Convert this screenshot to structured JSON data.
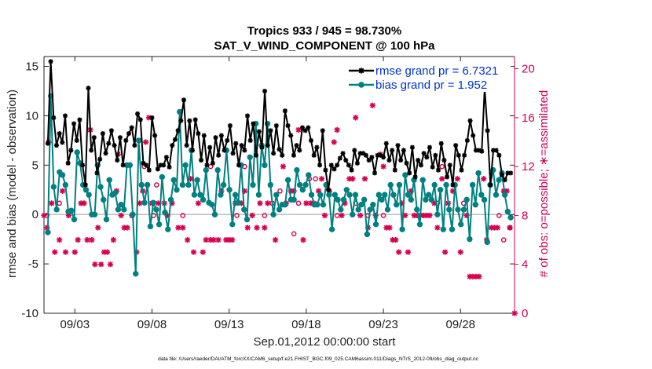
{
  "chart_data": {
    "type": "line",
    "title": "Tropics 933 / 945 = 98.730%",
    "subtitle": "SAT_V_WIND_COMPONENT @ 100 hPa",
    "xlabel": "Sep.01,2012 00:00:00 start",
    "ylabel": "rmse and bias (model - observation)",
    "ylabel_right": "# of obs: o=possible; ∗=assimilated",
    "xlim": [
      1,
      31.5
    ],
    "ylim": [
      -10,
      16
    ],
    "ylim_right": [
      0,
      21
    ],
    "x_tick_values": [
      3,
      8,
      13,
      18,
      23,
      28
    ],
    "x_tick_labels": [
      "09/03",
      "09/08",
      "09/13",
      "09/18",
      "09/23",
      "09/28"
    ],
    "y_ticks": [
      -10,
      -5,
      0,
      5,
      10,
      15
    ],
    "y_ticks_right": [
      0,
      4,
      8,
      12,
      16,
      20
    ],
    "footnote": "data file: /Users/raeder/DAI/ATM_forcXX/CAM6_setup/f.e21.FHIST_BGC.f09_025.CAM6assim.011/Diags_NTrS_2012-09/obs_diag_output.nc",
    "legend": [
      {
        "label": "rmse grand pr = 6.7321",
        "color": "#000000",
        "marker": "star"
      },
      {
        "label": "bias grand pr = 1.952",
        "color": "#008080",
        "marker": "dot"
      }
    ],
    "series": [
      {
        "name": "rmse",
        "color": "#000000",
        "values": [
          7.2,
          15.5,
          9.8,
          7.0,
          8.2,
          7.3,
          10.0,
          5.2,
          6.5,
          9.2,
          7.5,
          9.6,
          5.0,
          3.0,
          12.8,
          6.5,
          7.8,
          4.2,
          5.6,
          8.2,
          6.2,
          7.2,
          8.5,
          7.0,
          5.5,
          7.8,
          5.0,
          7.5,
          8.2,
          8.8,
          7.0,
          10.2,
          9.6,
          5.2,
          5.0,
          4.5,
          9.8,
          8.0,
          4.6,
          5.0,
          5.0,
          5.8,
          4.8,
          7.0,
          7.6,
          8.5,
          9.5,
          11.6,
          7.0,
          9.5,
          6.5,
          9.6,
          8.2,
          5.5,
          8.0,
          5.0,
          6.8,
          5.2,
          7.8,
          6.0,
          8.0,
          6.5,
          7.5,
          9.0,
          6.2,
          7.2,
          5.0,
          7.0,
          6.5,
          10.0,
          7.5,
          9.2,
          6.0,
          8.4,
          6.8,
          12.5,
          7.0,
          8.5,
          6.2,
          9.0,
          6.6,
          6.0,
          10.5,
          9.0,
          8.0,
          6.0,
          7.0,
          6.5,
          8.8,
          8.5,
          8.8,
          7.5,
          6.0,
          6.8,
          5.0,
          8.5,
          4.5,
          2.5,
          5.0,
          4.6,
          5.0,
          5.7,
          6.2,
          5.5,
          5.0,
          4.5,
          6.5,
          5.2,
          6.2,
          6.2,
          6.0,
          5.5,
          5.8,
          4.2,
          6.0,
          6.0,
          5.8,
          7.2,
          5.5,
          6.5,
          4.5,
          7.0,
          5.5,
          6.5,
          5.2,
          4.2,
          6.8,
          3.8,
          5.5,
          5.0,
          6.2,
          5.8,
          6.8,
          4.8,
          6.0,
          4.5,
          7.2,
          5.5,
          3.8,
          5.0,
          3.0,
          7.0,
          6.0,
          4.5,
          6.0,
          7.5,
          9.5,
          8.0,
          6.5,
          6.5,
          6.4,
          12.8,
          8.5,
          3.0,
          6.5,
          6.5,
          6.0,
          4.0,
          3.5,
          4.2,
          4.2
        ]
      },
      {
        "name": "bias",
        "color": "#008080",
        "values": [
          -1.8,
          12.0,
          2.8,
          0.5,
          4.3,
          4.0,
          3.0,
          0.3,
          0.4,
          -0.5,
          6.3,
          5.2,
          3.0,
          2.5,
          2.0,
          0.0,
          0.0,
          5.0,
          2.8,
          1.5,
          -0.5,
          3.5,
          2.0,
          2.2,
          0.5,
          1.0,
          0.5,
          5.0,
          5.0,
          0.0,
          -6.0,
          7.5,
          3.0,
          1.2,
          3.0,
          -1.2,
          1.2,
          0.5,
          -1.0,
          3.8,
          0.2,
          -1.5,
          1.5,
          3.5,
          2.5,
          10.4,
          3.0,
          5.0,
          3.0,
          6.5,
          2.0,
          3.5,
          2.0,
          1.5,
          4.5,
          1.2,
          1.0,
          0.0,
          4.5,
          2.0,
          3.0,
          6.5,
          2.5,
          -1.0,
          2.0,
          1.2,
          5.0,
          0.5,
          -0.5,
          5.8,
          3.0,
          9.2,
          2.0,
          7.0,
          5.0,
          9.2,
          3.0,
          0.0,
          2.0,
          0.5,
          1.0,
          1.0,
          3.5,
          1.5,
          1.5,
          4.5,
          3.0,
          2.5,
          3.0,
          4.0,
          2.0,
          1.0,
          1.0,
          2.0,
          1.0,
          3.0,
          2.0,
          -1.5,
          2.0,
          1.5,
          0.5,
          1.5,
          2.5,
          2.0,
          0.0,
          2.0,
          0.5,
          1.0,
          1.5,
          -2.0,
          0.5,
          1.0,
          -1.0,
          2.0,
          1.5,
          2.0,
          0.5,
          3.0,
          2.0,
          1.0,
          3.0,
          -1.5,
          4.0,
          2.0,
          1.5,
          3.5,
          0.5,
          -1.0,
          3.5,
          1.5,
          2.0,
          1.5,
          3.0,
          0.0,
          2.5,
          -1.5,
          3.0,
          0.5,
          -1.5,
          3.0,
          0.5,
          -1.0,
          0.5,
          1.5,
          -2.5,
          3.0,
          1.0,
          4.2,
          2.0,
          1.5,
          -2.8,
          3.0,
          4.5,
          2.0,
          3.5,
          4.2,
          2.0,
          0.3,
          -0.3
        ]
      },
      {
        "name": "obs_possible",
        "marker": "o",
        "color": "#d6004f",
        "axis": "right",
        "points": [
          [
            1.2,
            8
          ],
          [
            2.0,
            9
          ],
          [
            7.5,
            12
          ],
          [
            8.1,
            8
          ],
          [
            8.3,
            10.5
          ],
          [
            10.0,
            8
          ],
          [
            11.8,
            12
          ],
          [
            13.5,
            8
          ],
          [
            14.0,
            12
          ],
          [
            15.3,
            8
          ],
          [
            15.8,
            9
          ],
          [
            16.3,
            10
          ],
          [
            17.2,
            6.5
          ],
          [
            17.5,
            9
          ],
          [
            18.2,
            11
          ],
          [
            18.6,
            11
          ],
          [
            20.0,
            8
          ],
          [
            21.2,
            9
          ],
          [
            22.0,
            8
          ],
          [
            23.0,
            8
          ],
          [
            26.5,
            9
          ],
          [
            26.8,
            12
          ],
          [
            28.2,
            9
          ],
          [
            30.5,
            8
          ],
          [
            30.8,
            6
          ],
          [
            31.2,
            7
          ]
        ]
      },
      {
        "name": "obs_assimilated",
        "marker": "*",
        "color": "#d6004f",
        "axis": "right",
        "points": [
          [
            1.0,
            8
          ],
          [
            1.2,
            7
          ],
          [
            1.3,
            14
          ],
          [
            1.5,
            9
          ],
          [
            1.7,
            5
          ],
          [
            2.0,
            6
          ],
          [
            2.2,
            10
          ],
          [
            2.4,
            5
          ],
          [
            2.6,
            8
          ],
          [
            3.0,
            5
          ],
          [
            3.2,
            6
          ],
          [
            3.4,
            9
          ],
          [
            3.6,
            9
          ],
          [
            3.8,
            6
          ],
          [
            4.0,
            15
          ],
          [
            4.1,
            6
          ],
          [
            4.3,
            4
          ],
          [
            4.5,
            7
          ],
          [
            4.7,
            4
          ],
          [
            4.9,
            5
          ],
          [
            5.1,
            5
          ],
          [
            5.3,
            4
          ],
          [
            5.5,
            6
          ],
          [
            5.7,
            10
          ],
          [
            5.8,
            13
          ],
          [
            6.0,
            8
          ],
          [
            6.2,
            7
          ],
          [
            6.4,
            7
          ],
          [
            6.7,
            8
          ],
          [
            7.0,
            5
          ],
          [
            7.2,
            9
          ],
          [
            7.4,
            10
          ],
          [
            7.6,
            14
          ],
          [
            7.8,
            16
          ],
          [
            8.0,
            9
          ],
          [
            8.4,
            9
          ],
          [
            8.8,
            9
          ],
          [
            9.0,
            8
          ],
          [
            9.3,
            9
          ],
          [
            9.7,
            7
          ],
          [
            10.0,
            7
          ],
          [
            10.3,
            6
          ],
          [
            10.5,
            11
          ],
          [
            10.7,
            5
          ],
          [
            11.0,
            9
          ],
          [
            11.3,
            5
          ],
          [
            11.5,
            6
          ],
          [
            11.8,
            6
          ],
          [
            12.0,
            6
          ],
          [
            12.3,
            6
          ],
          [
            12.5,
            10
          ],
          [
            12.8,
            6
          ],
          [
            13.0,
            6
          ],
          [
            13.2,
            6
          ],
          [
            13.4,
            9
          ],
          [
            13.8,
            9
          ],
          [
            14.0,
            10
          ],
          [
            14.2,
            7
          ],
          [
            14.5,
            8
          ],
          [
            14.8,
            7
          ],
          [
            15.0,
            9
          ],
          [
            15.3,
            7
          ],
          [
            15.5,
            9
          ],
          [
            16.0,
            6
          ],
          [
            16.5,
            12
          ],
          [
            16.7,
            9
          ],
          [
            17.0,
            10
          ],
          [
            17.2,
            10
          ],
          [
            17.5,
            15
          ],
          [
            17.8,
            6
          ],
          [
            18.0,
            9
          ],
          [
            18.3,
            9
          ],
          [
            18.5,
            9
          ],
          [
            18.8,
            10
          ],
          [
            19.0,
            11
          ],
          [
            19.2,
            8
          ],
          [
            19.5,
            10
          ],
          [
            19.8,
            14
          ],
          [
            20.0,
            15
          ],
          [
            20.3,
            8
          ],
          [
            20.5,
            9
          ],
          [
            20.8,
            11
          ],
          [
            21.0,
            11
          ],
          [
            21.2,
            16
          ],
          [
            21.5,
            8
          ],
          [
            21.8,
            11
          ],
          [
            22.0,
            7
          ],
          [
            22.3,
            17
          ],
          [
            22.5,
            8
          ],
          [
            22.8,
            13
          ],
          [
            23.0,
            12
          ],
          [
            23.2,
            7
          ],
          [
            23.4,
            7
          ],
          [
            23.6,
            6
          ],
          [
            23.8,
            6
          ],
          [
            24.0,
            5
          ],
          [
            24.2,
            9
          ],
          [
            24.4,
            8
          ],
          [
            24.6,
            5
          ],
          [
            24.8,
            10
          ],
          [
            25.0,
            8
          ],
          [
            25.2,
            8
          ],
          [
            25.4,
            8
          ],
          [
            25.6,
            8
          ],
          [
            25.8,
            8
          ],
          [
            26.0,
            8
          ],
          [
            26.3,
            9
          ],
          [
            26.5,
            7
          ],
          [
            26.8,
            11
          ],
          [
            27.0,
            5
          ],
          [
            27.2,
            9
          ],
          [
            27.5,
            10
          ],
          [
            27.8,
            11
          ],
          [
            28.0,
            5
          ],
          [
            28.4,
            8
          ],
          [
            28.6,
            3
          ],
          [
            28.8,
            3
          ],
          [
            29.0,
            3
          ],
          [
            29.2,
            3
          ],
          [
            29.5,
            11
          ],
          [
            29.7,
            6
          ],
          [
            30.0,
            7
          ],
          [
            30.2,
            7
          ],
          [
            30.4,
            7
          ],
          [
            30.8,
            10
          ],
          [
            31.0,
            10
          ],
          [
            31.2,
            7
          ],
          [
            31.5,
            0
          ]
        ]
      }
    ]
  }
}
